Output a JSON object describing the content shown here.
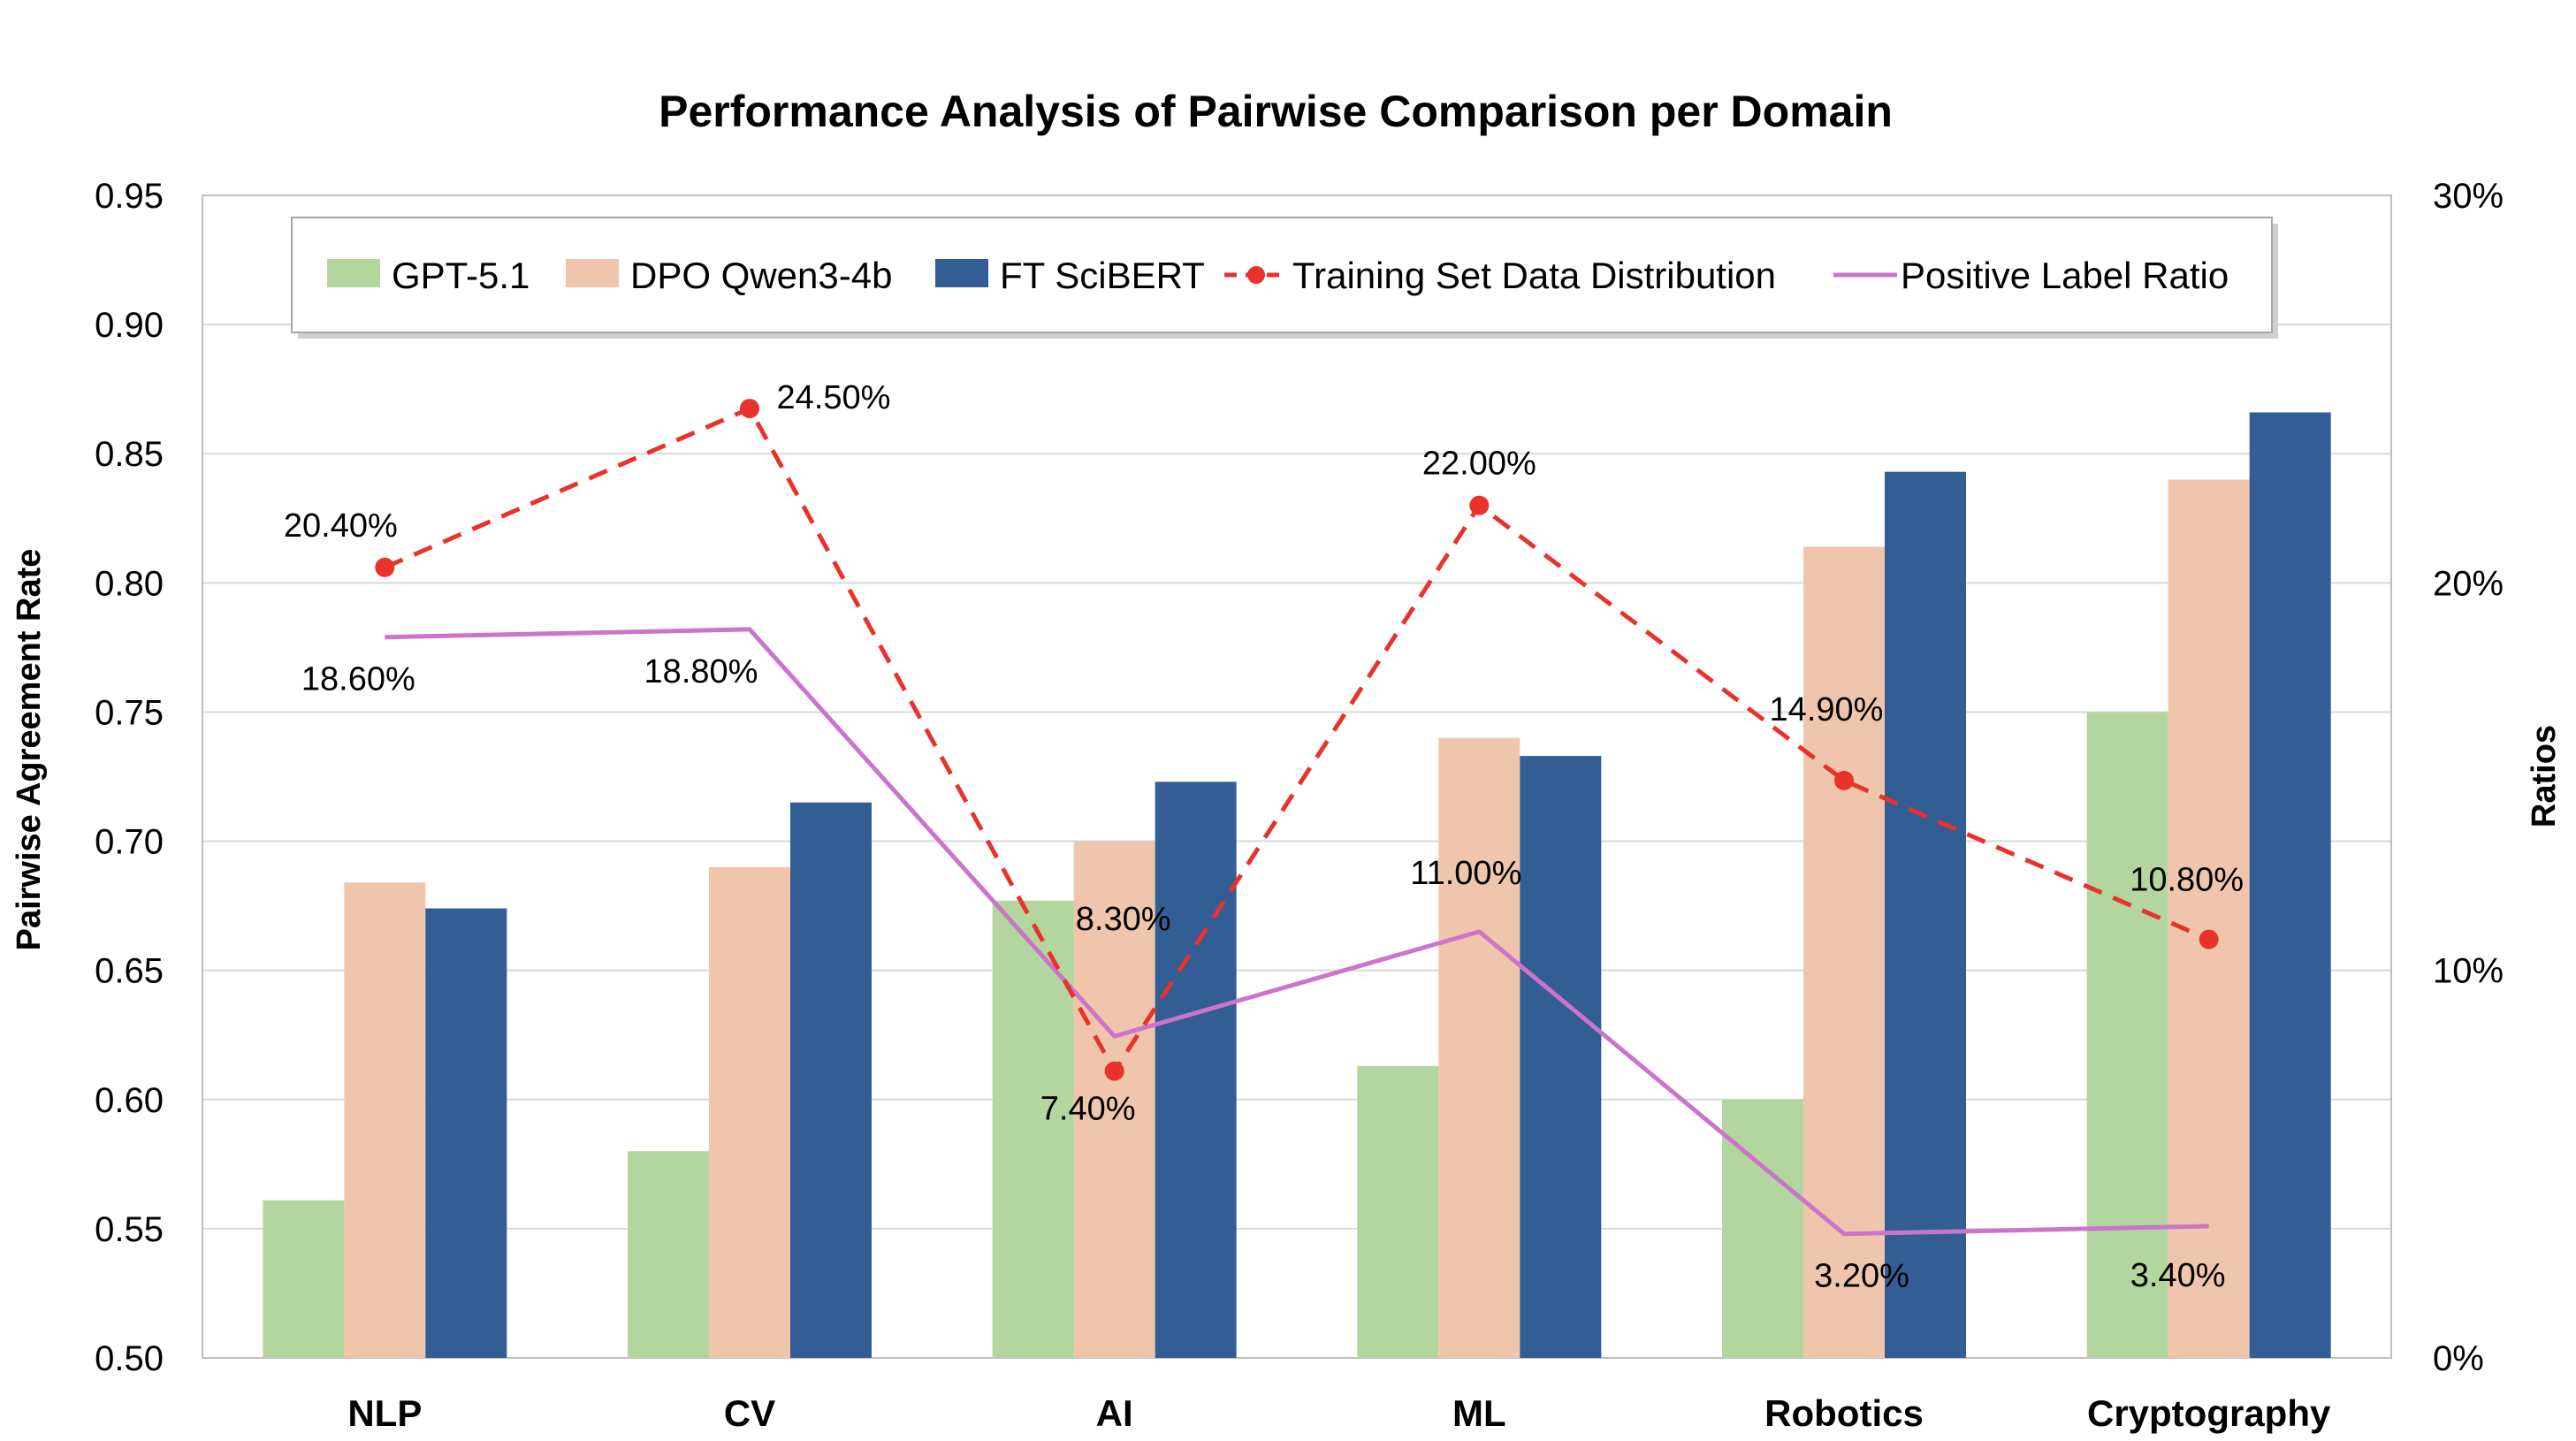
{
  "chart_data": {
    "type": "bar",
    "title": "Performance Analysis of Pairwise Comparison per Domain",
    "categories": [
      "NLP",
      "CV",
      "AI",
      "ML",
      "Robotics",
      "Cryptography"
    ],
    "ylabel": "Pairwise Agreement Rate",
    "y2label": "Ratios",
    "ylim": [
      0.5,
      0.95
    ],
    "yticks": [
      "0.50",
      "0.55",
      "0.60",
      "0.65",
      "0.70",
      "0.75",
      "0.80",
      "0.85",
      "0.90",
      "0.95"
    ],
    "y2lim": [
      0,
      30
    ],
    "y2ticks": [
      "0%",
      "10%",
      "20%",
      "30%"
    ],
    "grid": true,
    "legend_position": "top-inside",
    "series": [
      {
        "name": "GPT-5.1",
        "kind": "bar",
        "axis": "left",
        "color": "#B3D69F",
        "values": [
          0.561,
          0.58,
          0.677,
          0.613,
          0.6,
          0.75
        ]
      },
      {
        "name": "DPO Qwen3-4b",
        "kind": "bar",
        "axis": "left",
        "color": "#EFC6AC",
        "values": [
          0.684,
          0.69,
          0.7,
          0.74,
          0.814,
          0.84
        ]
      },
      {
        "name": "FT SciBERT",
        "kind": "bar",
        "axis": "left",
        "color": "#325D95",
        "values": [
          0.674,
          0.715,
          0.723,
          0.733,
          0.843,
          0.866
        ]
      },
      {
        "name": "Training Set Data Distribution",
        "kind": "dashed-line-markers",
        "axis": "right",
        "color": "#E8322B",
        "values": [
          20.4,
          24.5,
          7.4,
          22.0,
          14.9,
          10.8
        ],
        "labels": [
          "20.40%",
          "24.50%",
          "7.40%",
          "22.00%",
          "14.90%",
          "10.80%"
        ]
      },
      {
        "name": "Positive Label Ratio",
        "kind": "line",
        "axis": "right",
        "color": "#CC74CC",
        "values": [
          18.6,
          18.8,
          8.3,
          11.0,
          3.2,
          3.4
        ],
        "labels": [
          "18.60%",
          "18.80%",
          "8.30%",
          "11.00%",
          "3.20%",
          "3.40%"
        ]
      }
    ]
  }
}
